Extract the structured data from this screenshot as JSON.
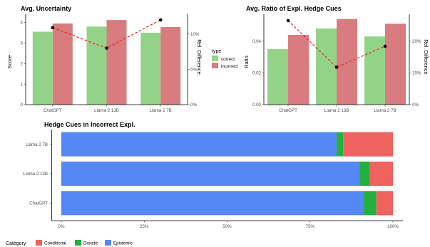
{
  "colors": {
    "correct": "#93D387",
    "incorrect": "#D87C80",
    "conditional": "#F0625E",
    "doxatic": "#22B13C",
    "epistemic": "#5488F4",
    "diff_line": "#E8261C",
    "point": "#000000"
  },
  "legend_type": {
    "title": "type",
    "items": [
      "correct",
      "incorrect"
    ]
  },
  "legend_category": {
    "title": "Category",
    "items": [
      "Conditional",
      "Doxatic",
      "Epistemic"
    ]
  },
  "chart_data": [
    {
      "type": "bar",
      "title": "Avg. Uncertainty",
      "ylabel": "Score",
      "y2label": "Rel. Difference",
      "categories": [
        "ChatGPT",
        "Llama 2 13B",
        "Llama 2 7B"
      ],
      "series": [
        {
          "name": "correct",
          "values": [
            3.55,
            3.8,
            3.5
          ]
        },
        {
          "name": "incorrect",
          "values": [
            3.95,
            4.12,
            3.78
          ]
        }
      ],
      "rel_difference": [
        0.109,
        0.08,
        0.12
      ],
      "ylim": [
        0,
        4.4
      ],
      "y2lim": [
        0,
        0.128
      ],
      "yticks": [
        "0",
        "1",
        "2",
        "3",
        "4"
      ],
      "y2ticks": [
        "0%",
        "5%",
        "10%"
      ],
      "grid": false
    },
    {
      "type": "bar",
      "title": "Avg. Ratio of Expl. Hedge Cues",
      "ylabel": "Ratio",
      "y2label": "Rel. Difference",
      "categories": [
        "ChatGPT",
        "Llama 2 13B",
        "Llama 2 7B"
      ],
      "series": [
        {
          "name": "correct",
          "values": [
            0.035,
            0.048,
            0.043
          ]
        },
        {
          "name": "incorrect",
          "values": [
            0.044,
            0.054,
            0.051
          ]
        }
      ],
      "rel_difference": [
        0.265,
        0.118,
        0.184
      ],
      "ylim": [
        0,
        0.057
      ],
      "y2lim": [
        0,
        0.285
      ],
      "yticks": [
        "0.00",
        "0.02",
        "0.04"
      ],
      "y2ticks": [
        "0%",
        "10%",
        "20%"
      ],
      "grid": false
    },
    {
      "type": "bar",
      "orientation": "horizontal",
      "stacked": true,
      "title": "Hedge Cues in Incorrect Expl.",
      "categories": [
        "Llama 2 7B",
        "Llama 2 13B",
        "ChatGPT"
      ],
      "series": [
        {
          "name": "Epistemic",
          "values": [
            0.83,
            0.9,
            0.91
          ]
        },
        {
          "name": "Doxatic",
          "values": [
            0.02,
            0.03,
            0.04
          ]
        },
        {
          "name": "Conditional",
          "values": [
            0.15,
            0.07,
            0.05
          ]
        }
      ],
      "xlim": [
        0,
        1
      ],
      "xticks": [
        "0%",
        "25%",
        "50%",
        "75%",
        "100%"
      ],
      "grid": false
    }
  ]
}
